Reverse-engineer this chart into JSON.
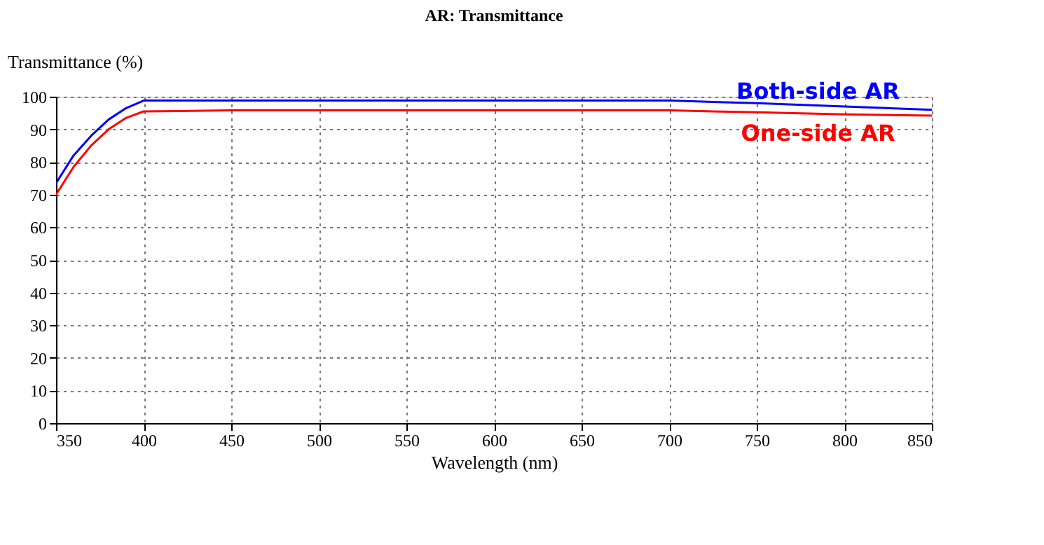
{
  "chart_data": {
    "type": "line",
    "title": "AR: Transmittance",
    "xlabel": "Wavelength (nm)",
    "ylabel": "Transmittance (%)",
    "x": [
      350,
      360,
      370,
      380,
      390,
      400,
      450,
      500,
      600,
      700,
      750,
      800,
      850
    ],
    "series": [
      {
        "name": "Both-side AR",
        "color": "#0000ff",
        "values": [
          73.5,
          82,
          88,
          93,
          96.5,
          98.8,
          98.8,
          98.8,
          98.8,
          98.8,
          98,
          97,
          96
        ]
      },
      {
        "name": "One-side AR",
        "color": "#ff0000",
        "values": [
          70,
          78.5,
          85,
          90,
          93.5,
          95.5,
          95.8,
          95.8,
          95.8,
          95.8,
          95.2,
          94.6,
          94.2
        ]
      }
    ],
    "xlim": [
      350,
      850
    ],
    "ylim": [
      0,
      100
    ],
    "xticks": [
      350,
      400,
      450,
      500,
      550,
      600,
      650,
      700,
      750,
      800,
      850
    ],
    "yticks": [
      0,
      10,
      20,
      30,
      40,
      50,
      60,
      70,
      80,
      90,
      100
    ],
    "grid": true,
    "legend": false,
    "marker": "none",
    "line_style": "solid"
  }
}
